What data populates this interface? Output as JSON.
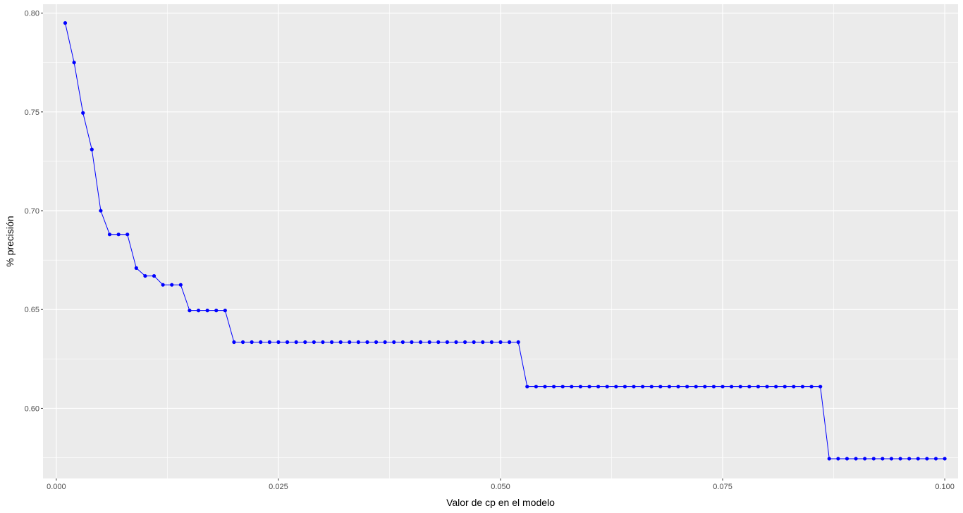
{
  "chart_data": {
    "type": "line",
    "title": "",
    "xlabel": "Valor de cp en el modelo",
    "ylabel": "% precisión",
    "xlim": [
      -0.0015,
      0.1015
    ],
    "ylim": [
      0.5645,
      0.8045
    ],
    "x_ticks": [
      0.0,
      0.025,
      0.05,
      0.075,
      0.1
    ],
    "x_tick_labels": [
      "0.000",
      "0.025",
      "0.050",
      "0.075",
      "0.100"
    ],
    "y_ticks": [
      0.6,
      0.65,
      0.7,
      0.75,
      0.8
    ],
    "y_tick_labels": [
      "0.60",
      "0.65",
      "0.70",
      "0.75",
      "0.80"
    ],
    "grid": true,
    "background": "#ebebeb",
    "grid_color": "#ffffff",
    "series": [
      {
        "color": "#0000ff",
        "x": [
          0.001,
          0.002,
          0.003,
          0.004,
          0.005,
          0.006,
          0.007,
          0.008,
          0.009,
          0.01,
          0.011,
          0.012,
          0.013,
          0.014,
          0.015,
          0.016,
          0.017,
          0.018,
          0.019,
          0.02,
          0.021,
          0.022,
          0.023,
          0.024,
          0.025,
          0.026,
          0.027,
          0.028,
          0.029,
          0.03,
          0.031,
          0.032,
          0.033,
          0.034,
          0.035,
          0.036,
          0.037,
          0.038,
          0.039,
          0.04,
          0.041,
          0.042,
          0.043,
          0.044,
          0.045,
          0.046,
          0.047,
          0.048,
          0.049,
          0.05,
          0.051,
          0.052,
          0.053,
          0.054,
          0.055,
          0.056,
          0.057,
          0.058,
          0.059,
          0.06,
          0.061,
          0.062,
          0.063,
          0.064,
          0.065,
          0.066,
          0.067,
          0.068,
          0.069,
          0.07,
          0.071,
          0.072,
          0.073,
          0.074,
          0.075,
          0.076,
          0.077,
          0.078,
          0.079,
          0.08,
          0.081,
          0.082,
          0.083,
          0.084,
          0.085,
          0.086,
          0.087,
          0.088,
          0.089,
          0.09,
          0.091,
          0.092,
          0.093,
          0.094,
          0.095,
          0.096,
          0.097,
          0.098,
          0.099,
          0.1
        ],
        "y": [
          0.795,
          0.775,
          0.7495,
          0.731,
          0.7,
          0.688,
          0.688,
          0.688,
          0.671,
          0.667,
          0.667,
          0.6625,
          0.6625,
          0.6625,
          0.6495,
          0.6495,
          0.6495,
          0.6495,
          0.6495,
          0.6335,
          0.6335,
          0.6335,
          0.6335,
          0.6335,
          0.6335,
          0.6335,
          0.6335,
          0.6335,
          0.6335,
          0.6335,
          0.6335,
          0.6335,
          0.6335,
          0.6335,
          0.6335,
          0.6335,
          0.6335,
          0.6335,
          0.6335,
          0.6335,
          0.6335,
          0.6335,
          0.6335,
          0.6335,
          0.6335,
          0.6335,
          0.6335,
          0.6335,
          0.6335,
          0.6335,
          0.6335,
          0.6335,
          0.611,
          0.611,
          0.611,
          0.611,
          0.611,
          0.611,
          0.611,
          0.611,
          0.611,
          0.611,
          0.611,
          0.611,
          0.611,
          0.611,
          0.611,
          0.611,
          0.611,
          0.611,
          0.611,
          0.611,
          0.611,
          0.611,
          0.611,
          0.611,
          0.611,
          0.611,
          0.611,
          0.611,
          0.611,
          0.611,
          0.611,
          0.611,
          0.611,
          0.611,
          0.5745,
          0.5745,
          0.5745,
          0.5745,
          0.5745,
          0.5745,
          0.5745,
          0.5745,
          0.5745,
          0.5745,
          0.5745,
          0.5745,
          0.5745,
          0.5745
        ]
      }
    ]
  }
}
